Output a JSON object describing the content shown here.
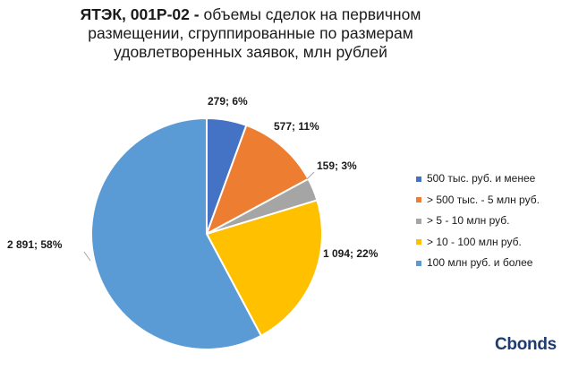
{
  "title": {
    "bold": "ЯТЭК, 001Р-02 -",
    "line1_rest": " объемы сделок на первичном",
    "line2": "размещении, сгруппированные по размерам",
    "line3": "удовлетворенных заявок, млн рублей"
  },
  "chart_data": {
    "type": "pie",
    "title": "ЯТЭК, 001Р-02 - объемы сделок на первичном размещении, сгруппированные по размерам удовлетворенных заявок, млн рублей",
    "slices": [
      {
        "label": "500 тыс. руб. и менее",
        "value": 279,
        "percent": 6,
        "data_label": "279; 6%",
        "color": "#4472c4"
      },
      {
        "label": "> 500 тыс. - 5 млн руб.",
        "value": 577,
        "percent": 11,
        "data_label": "577; 11%",
        "color": "#ed7d31"
      },
      {
        "label": "> 5 - 10 млн руб.",
        "value": 159,
        "percent": 3,
        "data_label": "159; 3%",
        "color": "#a5a5a5"
      },
      {
        "label": "> 10 - 100 млн руб.",
        "value": 1094,
        "percent": 22,
        "data_label": "1 094; 22%",
        "color": "#ffc000"
      },
      {
        "label": "100 млн руб. и более",
        "value": 2891,
        "percent": 58,
        "data_label": "2 891; 58%",
        "color": "#5b9bd5"
      }
    ],
    "legend_position": "right"
  },
  "logo": {
    "text": "Cbonds"
  }
}
